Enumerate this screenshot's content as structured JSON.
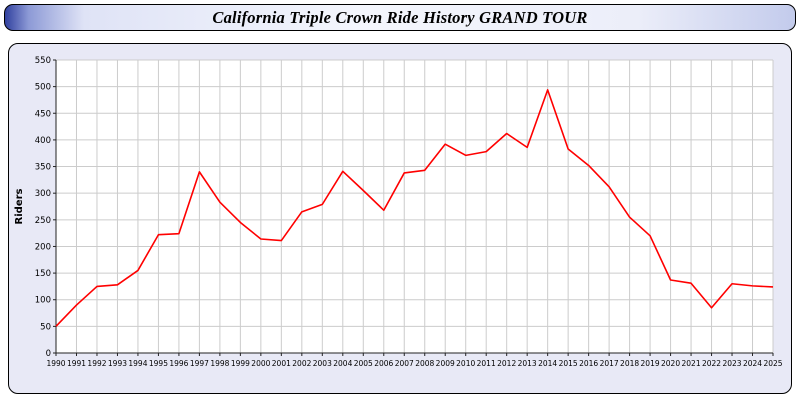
{
  "header": {
    "title": "California Triple Crown Ride History GRAND TOUR"
  },
  "colors": {
    "card_background": "#e8e9f6",
    "plot_background": "#ffffff",
    "grid": "#cccccc",
    "axis": "#222222",
    "line": "#ff0000"
  },
  "chart_data": {
    "type": "line",
    "title": "California Triple Crown Ride History GRAND TOUR",
    "xlabel": "",
    "ylabel": "Riders",
    "ylim": [
      0,
      550
    ],
    "ytick_step": 50,
    "grid": true,
    "legend": "none",
    "line_color": "#ff0000",
    "plot_bg": "#ffffff",
    "grid_color": "#cccccc",
    "categories": [
      "1990",
      "1991",
      "1992",
      "1993",
      "1994",
      "1995",
      "1996",
      "1997",
      "1998",
      "1999",
      "2000",
      "2001",
      "2002",
      "2003",
      "2004",
      "2005",
      "2006",
      "2007",
      "2008",
      "2009",
      "2010",
      "2011",
      "2012",
      "2013",
      "2014",
      "2015",
      "2016",
      "2017",
      "2018",
      "2019",
      "2020",
      "2021",
      "2022",
      "2023",
      "2024",
      "2025"
    ],
    "values": [
      50,
      90,
      125,
      128,
      155,
      222,
      224,
      340,
      283,
      245,
      214,
      211,
      265,
      279,
      341,
      305,
      268,
      338,
      343,
      392,
      371,
      378,
      412,
      386,
      494,
      383,
      352,
      312,
      255,
      220,
      137,
      131,
      85,
      130,
      126,
      124
    ]
  }
}
